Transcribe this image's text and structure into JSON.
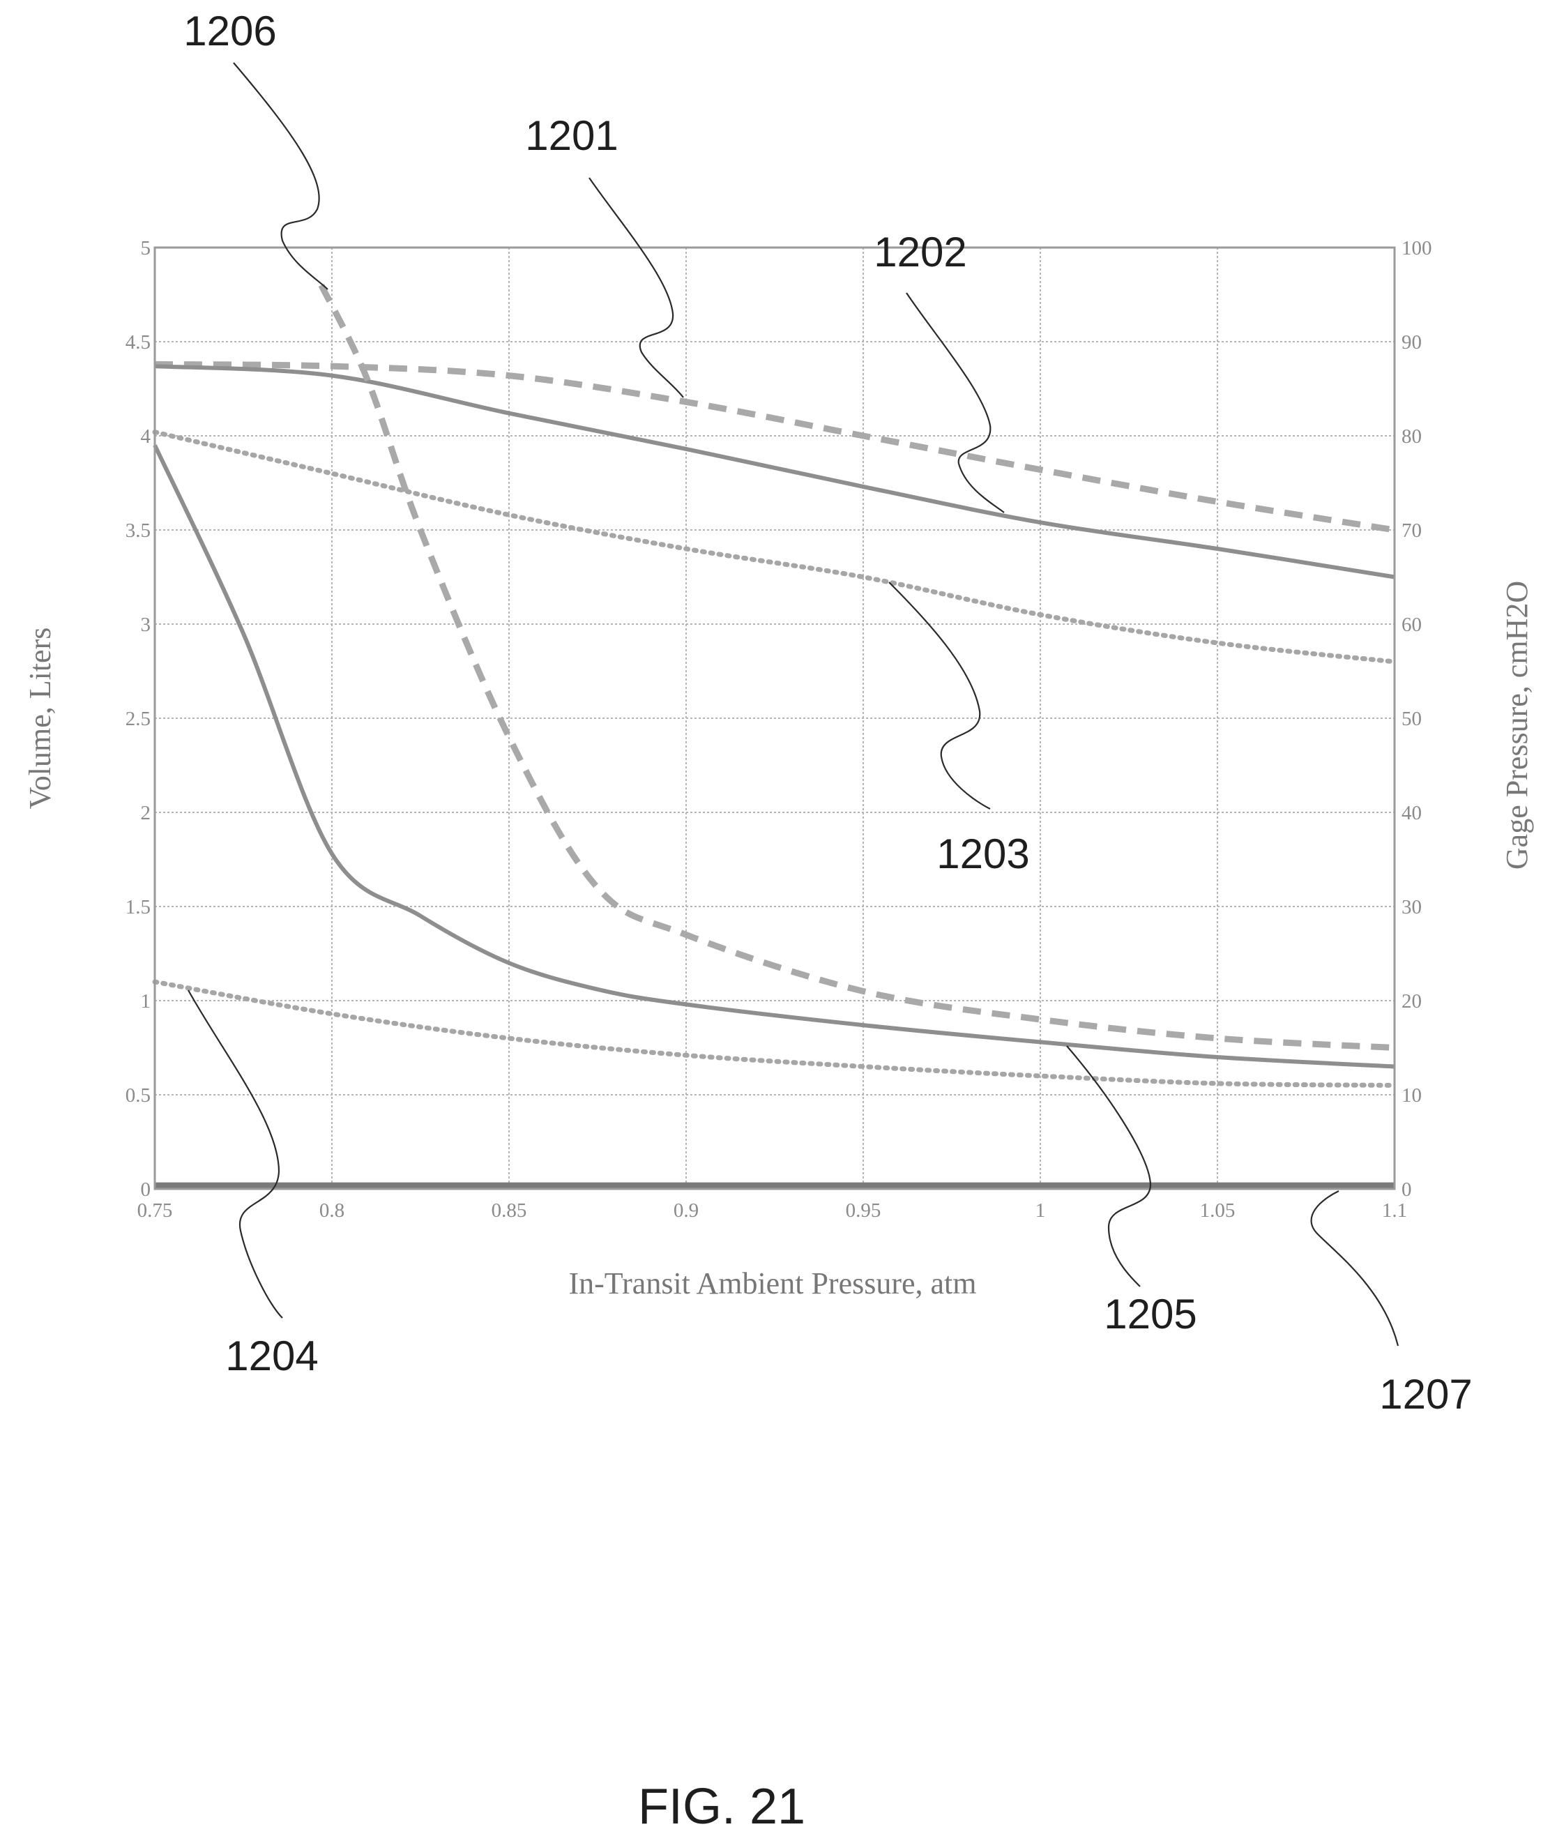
{
  "chart_data": {
    "type": "line",
    "title": "",
    "xlabel": "In-Transit Ambient Pressure, atm",
    "ylabel_left": "Volume, Liters",
    "ylabel_right": "Gage Pressure, cmH2O",
    "xlim": [
      0.75,
      1.1
    ],
    "ylim_left": [
      0,
      5
    ],
    "ylim_right": [
      0,
      100
    ],
    "grid": true,
    "x_ticks": [
      "0.75",
      "0.8",
      "0.85",
      "0.9",
      "0.95",
      "1",
      "1.05",
      "1.1"
    ],
    "y_left_ticks": [
      "0",
      "0.5",
      "1",
      "1.5",
      "2",
      "2.5",
      "3",
      "3.5",
      "4",
      "4.5",
      "5"
    ],
    "y_right_ticks": [
      "0",
      "10",
      "20",
      "30",
      "40",
      "50",
      "60",
      "70",
      "80",
      "90",
      "100"
    ],
    "series": [
      {
        "name": "1201",
        "axis": "left",
        "style": "dashed",
        "x": [
          0.75,
          0.8,
          0.85,
          0.9,
          0.95,
          1.0,
          1.05,
          1.1
        ],
        "y": [
          4.38,
          4.37,
          4.32,
          4.18,
          4.0,
          3.82,
          3.65,
          3.5
        ]
      },
      {
        "name": "1202",
        "axis": "left",
        "style": "solid",
        "x": [
          0.75,
          0.8,
          0.85,
          0.9,
          0.95,
          1.0,
          1.05,
          1.1
        ],
        "y": [
          4.37,
          4.32,
          4.12,
          3.93,
          3.73,
          3.54,
          3.4,
          3.25
        ]
      },
      {
        "name": "1203",
        "axis": "left",
        "style": "dotted",
        "x": [
          0.75,
          0.8,
          0.85,
          0.9,
          0.95,
          1.0,
          1.05,
          1.1
        ],
        "y": [
          4.02,
          3.8,
          3.58,
          3.4,
          3.25,
          3.05,
          2.9,
          2.8
        ]
      },
      {
        "name": "1204",
        "axis": "left",
        "style": "dotted",
        "x": [
          0.75,
          0.8,
          0.85,
          0.9,
          0.95,
          1.0,
          1.05,
          1.1
        ],
        "y": [
          1.1,
          0.93,
          0.8,
          0.71,
          0.65,
          0.6,
          0.56,
          0.55
        ]
      },
      {
        "name": "1205",
        "axis": "left",
        "style": "solid",
        "x": [
          0.75,
          0.775,
          0.8,
          0.825,
          0.85,
          0.875,
          0.9,
          0.95,
          1.0,
          1.05,
          1.1
        ],
        "y": [
          3.95,
          2.95,
          1.78,
          1.45,
          1.2,
          1.06,
          0.98,
          0.87,
          0.78,
          0.7,
          0.65
        ]
      },
      {
        "name": "1206",
        "axis": "left",
        "style": "dashed",
        "x": [
          0.797,
          0.81,
          0.825,
          0.85,
          0.875,
          0.9,
          0.95,
          1.0,
          1.05,
          1.1
        ],
        "y": [
          4.8,
          4.3,
          3.5,
          2.4,
          1.6,
          1.35,
          1.05,
          0.9,
          0.8,
          0.75
        ]
      },
      {
        "name": "1207",
        "axis": "left",
        "style": "solid",
        "x": [
          0.75,
          1.1
        ],
        "y": [
          0.02,
          0.02
        ]
      }
    ],
    "callouts": [
      {
        "label": "1206",
        "series": "1206",
        "position": "top-left"
      },
      {
        "label": "1201",
        "series": "1201",
        "position": "top"
      },
      {
        "label": "1202",
        "series": "1202",
        "position": "top-right"
      },
      {
        "label": "1203",
        "series": "1203",
        "position": "middle-right"
      },
      {
        "label": "1204",
        "series": "1204",
        "position": "bottom-left"
      },
      {
        "label": "1205",
        "series": "1205",
        "position": "bottom-right"
      },
      {
        "label": "1207",
        "series": "1207",
        "position": "bottom-right"
      }
    ],
    "figure_label": "FIG. 21"
  }
}
